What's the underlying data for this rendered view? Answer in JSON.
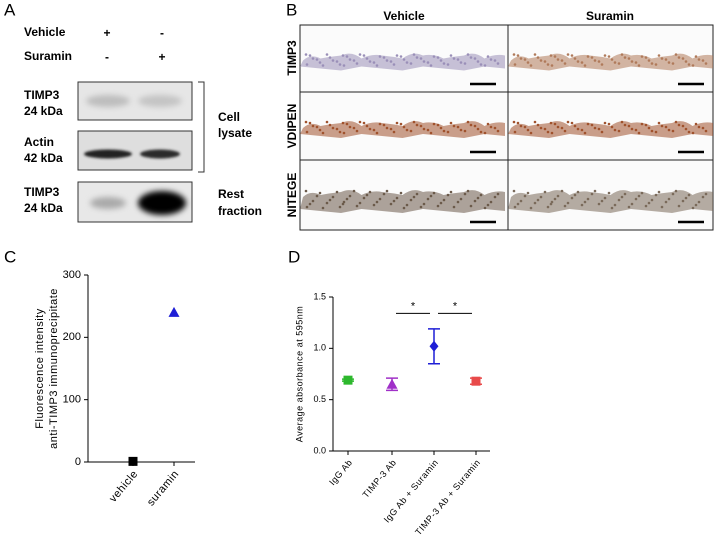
{
  "panel_a": {
    "label": "A",
    "conditions": [
      {
        "name": "Vehicle",
        "marks": [
          "+",
          "-"
        ]
      },
      {
        "name": "Suramin",
        "marks": [
          "-",
          "+"
        ]
      }
    ],
    "blots": [
      {
        "protein": "TIMP3",
        "size": "24 kDa"
      },
      {
        "protein": "Actin",
        "size": "42 kDa"
      },
      {
        "protein": "TIMP3",
        "size": "24 kDa"
      }
    ],
    "groups": [
      [
        "Cell",
        "lysate"
      ],
      [
        "Rest",
        "fraction"
      ]
    ]
  },
  "panel_b": {
    "label": "B",
    "columns": [
      "Vehicle",
      "Suramin"
    ],
    "rows": [
      "TIMP3",
      "VDIPEN",
      "NITEGE"
    ]
  },
  "chart_data": [
    {
      "type": "scatter",
      "label": "C",
      "ylabel": [
        "Fluorescence intensity",
        "anti-TIMP3 immunoprecipitate"
      ],
      "categories": [
        "vehicle",
        "suramin"
      ],
      "values": [
        1,
        240
      ],
      "colors": [
        "#000000",
        "#1f1fd6"
      ],
      "markers": [
        "square",
        "triangle"
      ],
      "ylim": [
        0,
        300
      ],
      "yticks": [
        0,
        100,
        200,
        300
      ]
    },
    {
      "type": "scatter",
      "label": "D",
      "ylabel": [
        "Average absorbance at 595nm"
      ],
      "categories": [
        "IgG Ab",
        "TIMP-3 Ab",
        "IgG Ab + Suramin",
        "TIMP-3 Ab + Suramin"
      ],
      "values": [
        0.69,
        0.65,
        1.02,
        0.68
      ],
      "errors": [
        0.01,
        0.06,
        0.17,
        0.03
      ],
      "colors": [
        "#2db82d",
        "#a030c8",
        "#1f1fd6",
        "#e84a4a"
      ],
      "markers": [
        "square",
        "triangle",
        "diamond",
        "square"
      ],
      "ylim": [
        0,
        1.5
      ],
      "yticks": [
        {
          "value": 0,
          "label": "0.0"
        },
        0.5,
        {
          "value": 1,
          "label": "1.0"
        },
        1.5
      ],
      "annotations": [
        "*",
        "*"
      ]
    }
  ]
}
